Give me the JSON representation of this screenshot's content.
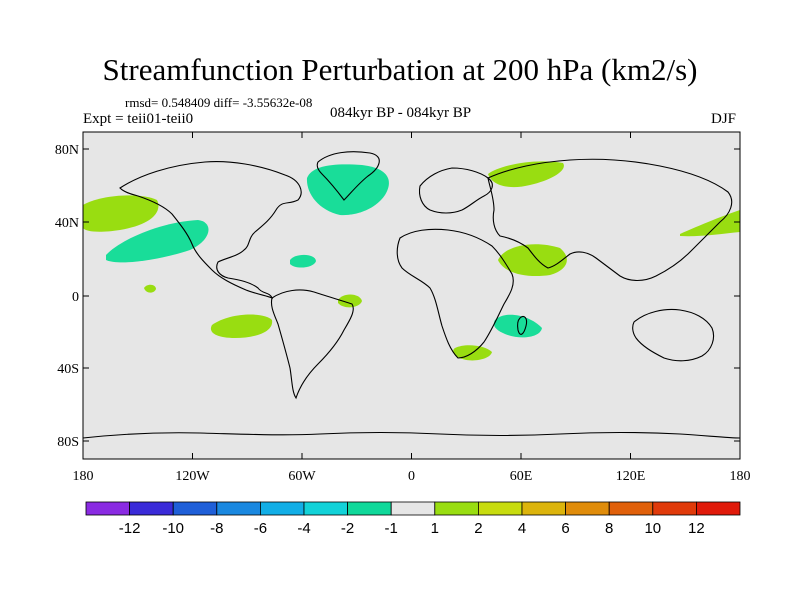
{
  "title": "Streamfunction Perturbation at 200 hPa (km2/s)",
  "stats": "rmsd= 0.548409 diff= -3.55632e-08",
  "experiment": "Expt = teii01-teii0",
  "period": "084kyr BP - 084kyr BP",
  "season": "DJF",
  "map": {
    "ocean_color": "#e6e6e6",
    "coast_color": "#000000",
    "lat_ticks": [
      "80N",
      "40N",
      "0",
      "40S",
      "80S"
    ],
    "lon_ticks": [
      "180",
      "120W",
      "60W",
      "0",
      "60E",
      "120E",
      "180"
    ]
  },
  "colorbar": {
    "labels": [
      "-12",
      "-10",
      "-8",
      "-6",
      "-4",
      "-2",
      "-1",
      "1",
      "2",
      "4",
      "6",
      "8",
      "10",
      "12"
    ],
    "colors": [
      "#8a2be2",
      "#3a2bd8",
      "#1f5fd8",
      "#1a88e0",
      "#12aee6",
      "#12d2d8",
      "#10d89a",
      "#e6e6e6",
      "#99dd11",
      "#c8dc0f",
      "#dcb40c",
      "#e08c0a",
      "#e0600a",
      "#e03a0a",
      "#e01a0a"
    ]
  },
  "anomalies": {
    "positive_color": "#99dd11",
    "negative_color": "#19dd99"
  }
}
